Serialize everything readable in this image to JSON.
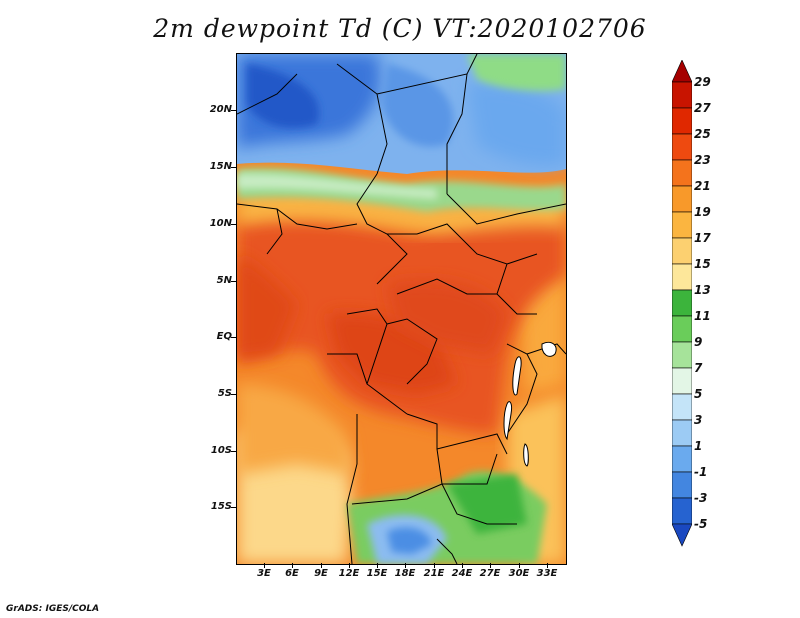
{
  "title": "2m dewpoint Td (C) VT:2020102706",
  "footer": "GrADS: IGES/COLA",
  "lat_labels": [
    "20N",
    "15N",
    "10N",
    "5N",
    "EQ",
    "5S",
    "10S",
    "15S"
  ],
  "lon_labels": [
    "3E",
    "6E",
    "9E",
    "12E",
    "15E",
    "18E",
    "21E",
    "24E",
    "27E",
    "30E",
    "33E"
  ],
  "colorbar": {
    "labels": [
      "29",
      "27",
      "25",
      "23",
      "21",
      "19",
      "17",
      "15",
      "13",
      "11",
      "9",
      "7",
      "5",
      "3",
      "1",
      "-1",
      "-3",
      "-5"
    ],
    "colors": [
      "#a50000",
      "#c81400",
      "#e02800",
      "#ee4a10",
      "#f4731c",
      "#f8992a",
      "#fbb540",
      "#fcd070",
      "#fde79a",
      "#3cb43c",
      "#6acd5a",
      "#a6e39a",
      "#e3f6e6",
      "#c4e4f8",
      "#9ccbf4",
      "#6aaaee",
      "#4386e0",
      "#2663d0",
      "#1a48c0"
    ]
  },
  "colors": {
    "background": "#ffffff",
    "border": "#000000"
  }
}
